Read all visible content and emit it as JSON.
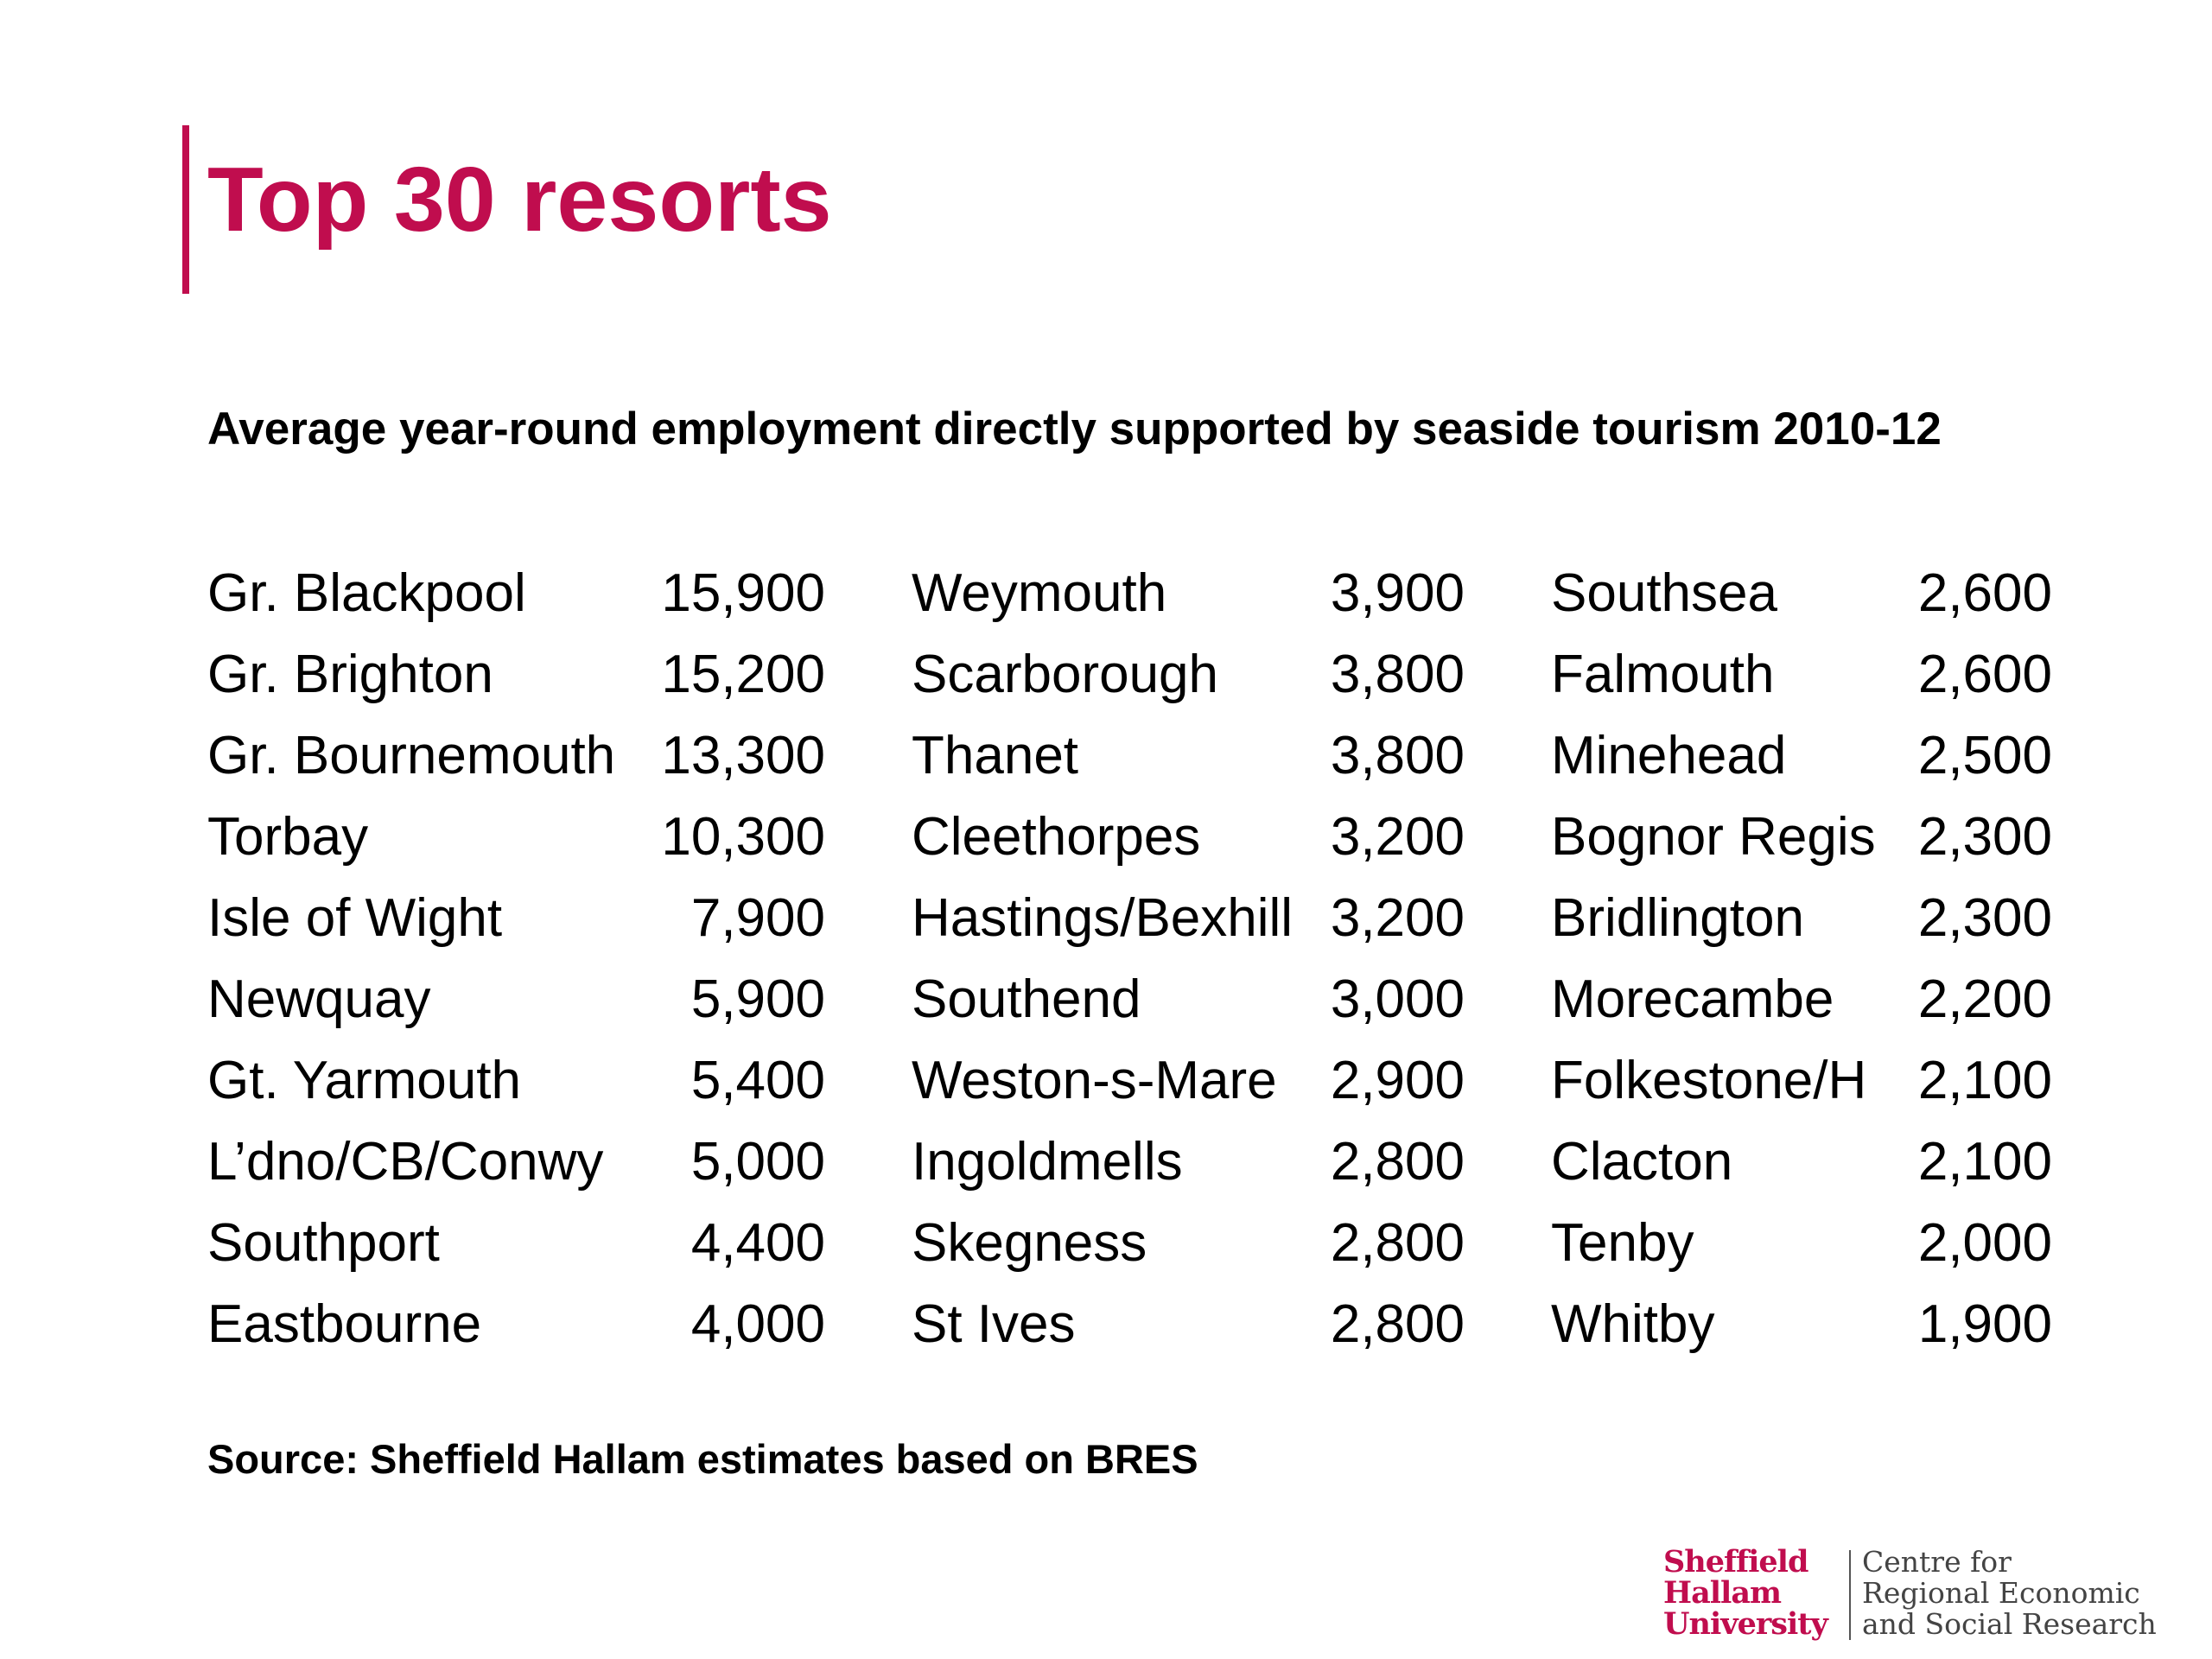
{
  "title": "Top 30 resorts",
  "subtitle": "Average year-round employment directly supported by seaside tourism 2010-12",
  "columns": [
    [
      {
        "name": "Gr. Blackpool",
        "value": "15,900"
      },
      {
        "name": "Gr. Brighton",
        "value": "15,200"
      },
      {
        "name": "Gr. Bournemouth",
        "value": "13,300"
      },
      {
        "name": "Torbay",
        "value": "10,300"
      },
      {
        "name": "Isle of Wight",
        "value": "7,900"
      },
      {
        "name": "Newquay",
        "value": "5,900"
      },
      {
        "name": "Gt. Yarmouth",
        "value": "5,400"
      },
      {
        "name": "L’dno/CB/Conwy",
        "value": "5,000"
      },
      {
        "name": "Southport",
        "value": "4,400"
      },
      {
        "name": "Eastbourne",
        "value": "4,000"
      }
    ],
    [
      {
        "name": "Weymouth",
        "value": "3,900"
      },
      {
        "name": "Scarborough",
        "value": "3,800"
      },
      {
        "name": "Thanet",
        "value": "3,800"
      },
      {
        "name": "Cleethorpes",
        "value": "3,200"
      },
      {
        "name": "Hastings/Bexhill",
        "value": "3,200"
      },
      {
        "name": "Southend",
        "value": "3,000"
      },
      {
        "name": "Weston-s-Mare",
        "value": "2,900"
      },
      {
        "name": "Ingoldmells",
        "value": "2,800"
      },
      {
        "name": "Skegness",
        "value": "2,800"
      },
      {
        "name": "St Ives",
        "value": "2,800"
      }
    ],
    [
      {
        "name": "Southsea",
        "value": "2,600"
      },
      {
        "name": "Falmouth",
        "value": "2,600"
      },
      {
        "name": "Minehead",
        "value": "2,500"
      },
      {
        "name": "Bognor Regis",
        "value": "2,300"
      },
      {
        "name": "Bridlington",
        "value": "2,300"
      },
      {
        "name": "Morecambe",
        "value": "2,200"
      },
      {
        "name": "Folkestone/H",
        "value": "2,100"
      },
      {
        "name": "Clacton",
        "value": "2,100"
      },
      {
        "name": "Tenby",
        "value": "2,000"
      },
      {
        "name": "Whitby",
        "value": "1,900"
      }
    ]
  ],
  "source": "Source: Sheffield Hallam estimates based on BRES",
  "logo": {
    "university_lines": [
      "Sheffield",
      "Hallam",
      "University"
    ],
    "centre_lines": [
      "Centre for",
      "Regional Economic",
      "and Social Research"
    ]
  },
  "colors": {
    "accent": "#c00d4e"
  }
}
